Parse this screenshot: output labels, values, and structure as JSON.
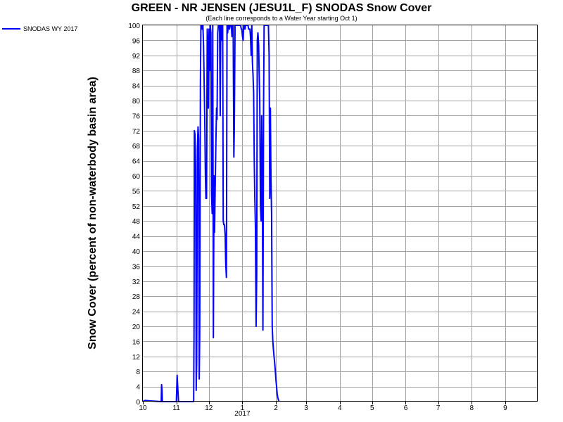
{
  "chart_data": {
    "type": "line",
    "title": "GREEN - NR JENSEN (JESU1L_F) SNODAS Snow Cover",
    "subtitle": "(Each line corresponds to a Water Year starting Oct 1)",
    "ylabel": "Snow Cover (percent of non-waterbody basin area)",
    "xlabel": "",
    "ylim": [
      0,
      100
    ],
    "y_ticks": [
      0,
      4,
      8,
      12,
      16,
      20,
      24,
      28,
      32,
      36,
      40,
      44,
      48,
      52,
      56,
      60,
      64,
      68,
      72,
      76,
      80,
      84,
      88,
      92,
      96,
      100
    ],
    "x_unit": "days since Oct 1",
    "xlim": [
      0,
      365
    ],
    "x_ticks": [
      {
        "label": "10",
        "day": 0
      },
      {
        "label": "11",
        "day": 31
      },
      {
        "label": "12",
        "day": 61
      },
      {
        "label": "1",
        "day": 92
      },
      {
        "label": "2",
        "day": 123
      },
      {
        "label": "3",
        "day": 151
      },
      {
        "label": "4",
        "day": 182
      },
      {
        "label": "5",
        "day": 212
      },
      {
        "label": "6",
        "day": 243
      },
      {
        "label": "7",
        "day": 273
      },
      {
        "label": "8",
        "day": 304
      },
      {
        "label": "9",
        "day": 335
      }
    ],
    "year_label": {
      "text": "2017",
      "day": 92
    },
    "grid": true,
    "legend_position": "top-left",
    "series": [
      {
        "name": "SNODAS WY 2017",
        "color": "#0000ff",
        "points": [
          [
            0,
            0
          ],
          [
            2,
            0.3
          ],
          [
            6,
            0.2
          ],
          [
            17,
            0
          ],
          [
            17.3,
            4.5
          ],
          [
            17.7,
            3
          ],
          [
            18,
            0
          ],
          [
            31,
            0
          ],
          [
            31.7,
            7
          ],
          [
            32.4,
            3
          ],
          [
            33,
            0
          ],
          [
            47,
            0
          ],
          [
            47.3,
            18
          ],
          [
            47.6,
            72
          ],
          [
            48.2,
            71
          ],
          [
            48.8,
            62
          ],
          [
            49.3,
            3
          ],
          [
            49.8,
            10
          ],
          [
            50.4,
            67
          ],
          [
            51,
            73
          ],
          [
            51.5,
            70
          ],
          [
            52.1,
            6
          ],
          [
            52.6,
            18
          ],
          [
            53.2,
            85
          ],
          [
            53.7,
            100
          ],
          [
            54.3,
            100
          ],
          [
            54.9,
            99
          ],
          [
            55.5,
            100
          ],
          [
            56.1,
            95
          ],
          [
            56.6,
            86
          ],
          [
            57.2,
            76
          ],
          [
            57.8,
            61
          ],
          [
            58.3,
            54
          ],
          [
            58.9,
            54
          ],
          [
            59.5,
            99
          ],
          [
            60.1,
            95
          ],
          [
            60.6,
            78
          ],
          [
            61.2,
            99
          ],
          [
            61.8,
            88
          ],
          [
            62.3,
            100
          ],
          [
            62.9,
            98
          ],
          [
            63.5,
            55
          ],
          [
            64.1,
            50
          ],
          [
            64.6,
            100
          ],
          [
            65.2,
            17
          ],
          [
            65.8,
            60
          ],
          [
            66.3,
            45
          ],
          [
            66.9,
            57
          ],
          [
            67.5,
            68
          ],
          [
            68.1,
            78
          ],
          [
            68.6,
            75
          ],
          [
            69.2,
            98
          ],
          [
            69.8,
            100
          ],
          [
            70.3,
            100
          ],
          [
            70.9,
            100
          ],
          [
            71.5,
            76
          ],
          [
            72,
            100
          ],
          [
            72.6,
            100
          ],
          [
            73.2,
            96
          ],
          [
            73.8,
            100
          ],
          [
            74.3,
            48
          ],
          [
            74.9,
            47
          ],
          [
            75.5,
            47
          ],
          [
            76.1,
            44
          ],
          [
            76.6,
            37
          ],
          [
            77.2,
            33
          ],
          [
            77.8,
            100
          ],
          [
            78.4,
            98
          ],
          [
            78.9,
            100
          ],
          [
            79.5,
            100
          ],
          [
            80.1,
            99
          ],
          [
            80.6,
            100
          ],
          [
            81.2,
            100
          ],
          [
            81.8,
            100
          ],
          [
            82.4,
            97
          ],
          [
            82.9,
            100
          ],
          [
            83.5,
            100
          ],
          [
            84.1,
            65
          ],
          [
            84.6,
            73
          ],
          [
            85.2,
            100
          ],
          [
            85.8,
            100
          ],
          [
            86.4,
            100
          ],
          [
            86.9,
            100
          ],
          [
            87.5,
            100
          ],
          [
            88.1,
            100
          ],
          [
            88.7,
            100
          ],
          [
            89.2,
            100
          ],
          [
            89.8,
            100
          ],
          [
            90.4,
            100
          ],
          [
            91,
            99
          ],
          [
            91.5,
            99
          ],
          [
            92.1,
            97
          ],
          [
            92.7,
            96
          ],
          [
            93.2,
            100
          ],
          [
            93.8,
            100
          ],
          [
            94.4,
            99
          ],
          [
            95,
            100
          ],
          [
            95.5,
            100
          ],
          [
            96.1,
            100
          ],
          [
            96.7,
            100
          ],
          [
            97.2,
            100
          ],
          [
            97.8,
            99
          ],
          [
            98.4,
            99
          ],
          [
            99,
            99
          ],
          [
            99.5,
            97
          ],
          [
            100.1,
            92
          ],
          [
            100.7,
            100
          ],
          [
            101.3,
            90
          ],
          [
            101.8,
            87
          ],
          [
            102.4,
            82
          ],
          [
            103,
            64
          ],
          [
            103.5,
            54
          ],
          [
            104.1,
            46
          ],
          [
            104.7,
            20
          ],
          [
            105.3,
            34
          ],
          [
            105.8,
            96
          ],
          [
            106.4,
            98
          ],
          [
            107,
            95
          ],
          [
            107.5,
            88
          ],
          [
            108.1,
            80
          ],
          [
            108.7,
            52
          ],
          [
            109.3,
            48
          ],
          [
            109.8,
            76
          ],
          [
            110.4,
            62
          ],
          [
            111,
            19
          ],
          [
            111.6,
            78
          ],
          [
            112.1,
            100
          ],
          [
            112.7,
            100
          ],
          [
            113.3,
            100
          ],
          [
            113.9,
            100
          ],
          [
            114.4,
            100
          ],
          [
            115,
            100
          ],
          [
            115.6,
            100
          ],
          [
            116.1,
            100
          ],
          [
            116.7,
            92
          ],
          [
            117.3,
            54
          ],
          [
            117.9,
            78
          ],
          [
            118.4,
            60
          ],
          [
            119,
            50
          ],
          [
            119.6,
            20
          ],
          [
            120.2,
            16
          ],
          [
            120.7,
            14
          ],
          [
            121.3,
            12
          ],
          [
            121.9,
            10
          ],
          [
            122.5,
            8
          ],
          [
            123,
            6
          ],
          [
            123.6,
            4
          ],
          [
            124.2,
            2
          ],
          [
            124.8,
            1
          ],
          [
            125.3,
            0.5
          ],
          [
            125.9,
            0
          ]
        ]
      }
    ]
  }
}
